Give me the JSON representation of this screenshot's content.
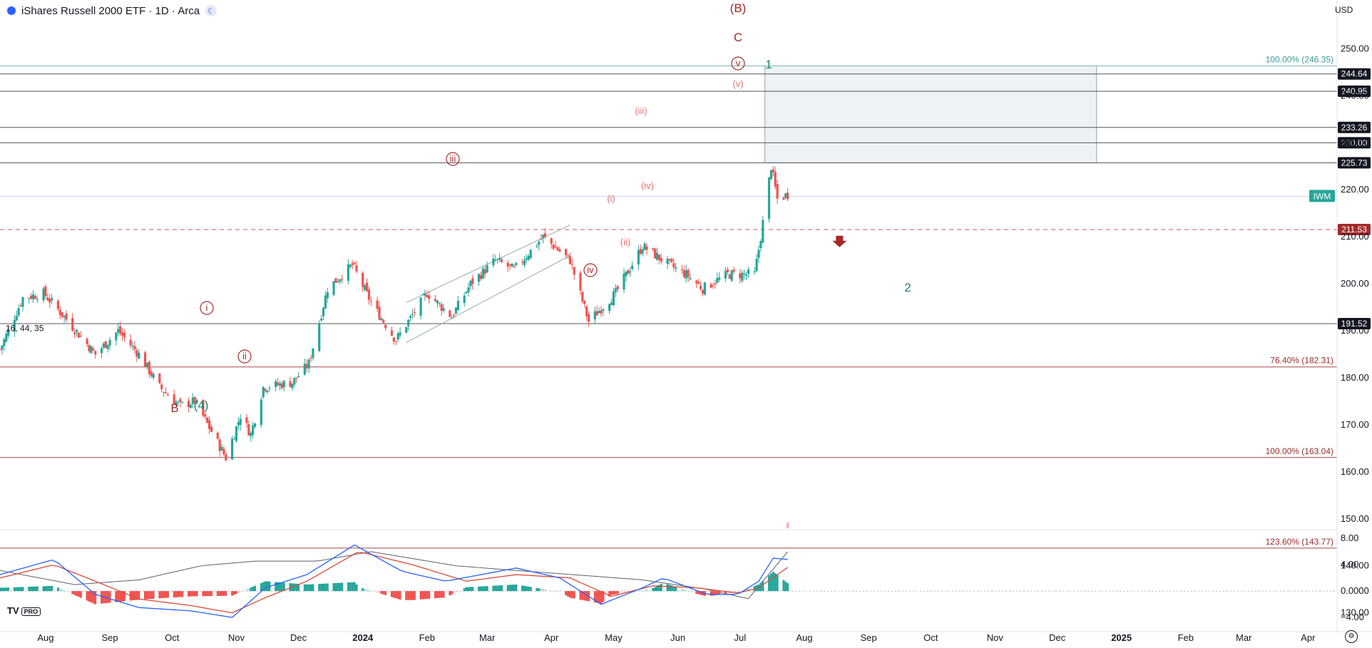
{
  "header": {
    "title": "iShares Russell 2000 ETF · 1D · Arca",
    "info_icon": "info-icon",
    "theme_icon": "moon-icon"
  },
  "currency": "USD",
  "ticker_badge": "IWM",
  "logo": {
    "mark": "TV",
    "badge": "PRO"
  },
  "study_values": "16, 44, 35",
  "colors": {
    "up": "#26a69a",
    "down": "#ef5350",
    "dark_label": "#131722",
    "wave_red": "#a52a2a",
    "wave_pink": "#e57373",
    "wave_teal": "#1e7f74",
    "fib_red": "#9b2d2d",
    "fib_teal": "#3a9c98",
    "macd": "#2962ff",
    "signal": "#d84a3a",
    "volume_ma": "#5d606b"
  },
  "price_axis": {
    "ticks": [
      "250.00",
      "240.00",
      "230.00",
      "220.00",
      "210.00",
      "200.00",
      "190.00",
      "180.00",
      "170.00",
      "160.00",
      "150.00",
      "140.00",
      "130.00"
    ]
  },
  "macd_axis": {
    "ticks": [
      "8.00",
      "4.00",
      "0.0000",
      "−4.00"
    ]
  },
  "time_axis": {
    "ticks": [
      {
        "label": "Aug",
        "bold": false
      },
      {
        "label": "Sep",
        "bold": false
      },
      {
        "label": "Oct",
        "bold": false
      },
      {
        "label": "Nov",
        "bold": false
      },
      {
        "label": "Dec",
        "bold": false
      },
      {
        "label": "2024",
        "bold": true
      },
      {
        "label": "Feb",
        "bold": false
      },
      {
        "label": "Mar",
        "bold": false
      },
      {
        "label": "Apr",
        "bold": false
      },
      {
        "label": "May",
        "bold": false
      },
      {
        "label": "Jun",
        "bold": false
      },
      {
        "label": "Jul",
        "bold": false
      },
      {
        "label": "Aug",
        "bold": false
      },
      {
        "label": "Sep",
        "bold": false
      },
      {
        "label": "Oct",
        "bold": false
      },
      {
        "label": "Nov",
        "bold": false
      },
      {
        "label": "Dec",
        "bold": false
      },
      {
        "label": "2025",
        "bold": true
      },
      {
        "label": "Feb",
        "bold": false
      },
      {
        "label": "Mar",
        "bold": false
      },
      {
        "label": "Apr",
        "bold": false
      }
    ]
  },
  "levels": [
    {
      "value": 244.64,
      "label": "244.64"
    },
    {
      "value": 240.95,
      "label": "240.95"
    },
    {
      "value": 233.26,
      "label": "233.26"
    },
    {
      "value": 230.0,
      "label": "230.00"
    },
    {
      "value": 225.73,
      "label": "225.73"
    },
    {
      "value": 191.52,
      "label": "191.52"
    }
  ],
  "stop_level": {
    "value": 211.53,
    "label": "211.53"
  },
  "fib_labels": [
    {
      "text": "100.00% (246.35)",
      "value": 246.35,
      "tone": "teal"
    },
    {
      "text": "76.40% (182.31)",
      "value": 182.31,
      "tone": "red"
    },
    {
      "text": "100.00% (163.04)",
      "value": 163.04,
      "tone": "red"
    },
    {
      "text": "123.60% (143.77)",
      "value": 143.77,
      "tone": "red"
    }
  ],
  "wave_labels": [
    {
      "text": "(B)",
      "tone": "red",
      "style": "plain"
    },
    {
      "text": "C",
      "tone": "red",
      "style": "plain"
    },
    {
      "text": "v",
      "tone": "red",
      "style": "circle"
    },
    {
      "text": "1",
      "tone": "teal",
      "style": "plain"
    },
    {
      "text": "(v)",
      "tone": "pink",
      "style": "plain"
    },
    {
      "text": "(iii)",
      "tone": "pink",
      "style": "plain"
    },
    {
      "text": "iii",
      "tone": "red",
      "style": "circle"
    },
    {
      "text": "(iv)",
      "tone": "pink",
      "style": "plain"
    },
    {
      "text": "(i)",
      "tone": "pink",
      "style": "plain"
    },
    {
      "text": "(ii)",
      "tone": "pink",
      "style": "plain"
    },
    {
      "text": "iv",
      "tone": "red",
      "style": "circle"
    },
    {
      "text": "2",
      "tone": "teal",
      "style": "plain"
    },
    {
      "text": "i",
      "tone": "red",
      "style": "circle"
    },
    {
      "text": "ii",
      "tone": "red",
      "style": "circle"
    },
    {
      "text": "B",
      "tone": "red",
      "style": "plain"
    },
    {
      "text": "(4)",
      "tone": "teal",
      "style": "plain"
    }
  ],
  "chart_data": {
    "type": "candlestick",
    "title": "iShares Russell 2000 ETF · 1D · Arca",
    "symbol": "IWM",
    "ylim": [
      126,
      254
    ],
    "macd_ylim": [
      -5.5,
      9
    ],
    "x_range": [
      "2023-07-10",
      "2025-04-15"
    ],
    "price_path": [
      [
        "2023-07-10",
        186
      ],
      [
        "2023-07-21",
        197
      ],
      [
        "2023-07-31",
        198
      ],
      [
        "2023-08-10",
        193
      ],
      [
        "2023-08-25",
        185
      ],
      [
        "2023-09-05",
        190
      ],
      [
        "2023-09-15",
        185
      ],
      [
        "2023-09-25",
        178
      ],
      [
        "2023-10-05",
        174
      ],
      [
        "2023-10-12",
        175
      ],
      [
        "2023-10-27",
        163
      ],
      [
        "2023-11-03",
        172
      ],
      [
        "2023-11-08",
        168
      ],
      [
        "2023-11-14",
        178
      ],
      [
        "2023-11-28",
        179
      ],
      [
        "2023-12-06",
        183
      ],
      [
        "2023-12-15",
        199
      ],
      [
        "2023-12-27",
        204
      ],
      [
        "2024-01-05",
        196
      ],
      [
        "2024-01-17",
        188
      ],
      [
        "2024-02-01",
        198
      ],
      [
        "2024-02-13",
        193
      ],
      [
        "2024-02-22",
        200
      ],
      [
        "2024-03-05",
        205
      ],
      [
        "2024-03-14",
        203
      ],
      [
        "2024-03-28",
        210
      ],
      [
        "2024-04-10",
        205
      ],
      [
        "2024-04-19",
        192
      ],
      [
        "2024-05-02",
        198
      ],
      [
        "2024-05-15",
        208
      ],
      [
        "2024-05-28",
        204
      ],
      [
        "2024-06-05",
        202
      ],
      [
        "2024-06-13",
        199
      ],
      [
        "2024-06-25",
        202
      ],
      [
        "2024-07-08",
        202
      ],
      [
        "2024-07-11",
        210
      ],
      [
        "2024-07-16",
        225
      ],
      [
        "2024-07-19",
        218
      ],
      [
        "2024-07-24",
        219
      ]
    ],
    "key_points": [
      {
        "label": "(4)",
        "value": 162.0,
        "date": "2023-10-27"
      },
      {
        "label": "iii",
        "value": 211.0,
        "date": "2024-03-28"
      },
      {
        "label": "iv",
        "value": 192.0,
        "date": "2024-04-19"
      },
      {
        "label": "(iii)",
        "value": 226.0,
        "date": "2024-07-16"
      }
    ],
    "volume_ma_path": [
      [
        "2023-07-10",
        139
      ],
      [
        "2023-08-15",
        136
      ],
      [
        "2023-09-15",
        137
      ],
      [
        "2023-10-15",
        140
      ],
      [
        "2023-11-10",
        141
      ],
      [
        "2023-12-10",
        141
      ],
      [
        "2024-01-05",
        143
      ],
      [
        "2024-02-15",
        140
      ],
      [
        "2024-03-15",
        139
      ],
      [
        "2024-04-15",
        138
      ],
      [
        "2024-05-15",
        137
      ],
      [
        "2024-06-15",
        135
      ],
      [
        "2024-07-05",
        133
      ],
      [
        "2024-07-24",
        143
      ]
    ],
    "macd_line_path": [
      [
        "2023-07-10",
        2.5
      ],
      [
        "2023-08-05",
        4.8
      ],
      [
        "2023-08-25",
        -0.5
      ],
      [
        "2023-09-15",
        -2.5
      ],
      [
        "2023-10-10",
        -3.0
      ],
      [
        "2023-10-30",
        -4.0
      ],
      [
        "2023-11-15",
        0.5
      ],
      [
        "2023-12-05",
        2.5
      ],
      [
        "2023-12-28",
        7.0
      ],
      [
        "2024-01-20",
        3.0
      ],
      [
        "2024-02-10",
        1.5
      ],
      [
        "2024-03-15",
        3.5
      ],
      [
        "2024-04-05",
        2.0
      ],
      [
        "2024-04-25",
        -2.0
      ],
      [
        "2024-05-15",
        0.5
      ],
      [
        "2024-05-25",
        2.0
      ],
      [
        "2024-06-15",
        -0.5
      ],
      [
        "2024-06-30",
        -0.5
      ],
      [
        "2024-07-10",
        1.5
      ],
      [
        "2024-07-17",
        5.0
      ],
      [
        "2024-07-24",
        4.8
      ]
    ],
    "signal_line_path": [
      [
        "2023-07-10",
        2.0
      ],
      [
        "2023-08-05",
        4.0
      ],
      [
        "2023-08-25",
        1.5
      ],
      [
        "2023-09-15",
        -1.2
      ],
      [
        "2023-10-10",
        -2.2
      ],
      [
        "2023-10-30",
        -3.3
      ],
      [
        "2023-11-15",
        -1.0
      ],
      [
        "2023-12-05",
        1.5
      ],
      [
        "2023-12-30",
        6.0
      ],
      [
        "2024-01-25",
        4.0
      ],
      [
        "2024-02-20",
        1.5
      ],
      [
        "2024-03-15",
        2.5
      ],
      [
        "2024-04-10",
        2.0
      ],
      [
        "2024-04-30",
        -0.8
      ],
      [
        "2024-05-20",
        0.8
      ],
      [
        "2024-06-10",
        0.5
      ],
      [
        "2024-06-30",
        -0.3
      ],
      [
        "2024-07-10",
        0.5
      ],
      [
        "2024-07-24",
        3.6
      ]
    ]
  }
}
